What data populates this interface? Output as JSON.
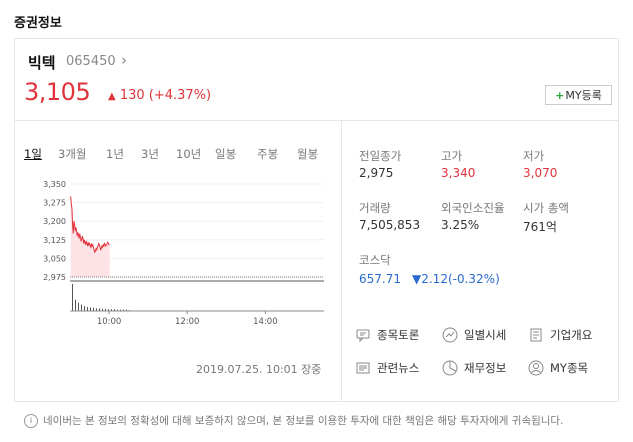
{
  "section_title": "증권정보",
  "stock": {
    "name": "빅텍",
    "code": "065450",
    "price": "3,105",
    "change_arrow": "▲",
    "change": "130 (+4.37%)",
    "my_button": "MY등록"
  },
  "tabs": [
    "1일",
    "3개월",
    "1년",
    "3년",
    "10년",
    "일봉",
    "주봉",
    "월봉"
  ],
  "active_tab": "1일",
  "stats": {
    "prev_close_label": "전일종가",
    "prev_close": "2,975",
    "high_label": "고가",
    "high": "3,340",
    "low_label": "저가",
    "low": "3,070",
    "volume_label": "거래량",
    "volume": "7,505,853",
    "foreign_label": "외국인소진율",
    "foreign": "3.25%",
    "mcap_label": "시가 총액",
    "mcap": "761억"
  },
  "index": {
    "name": "코스닥",
    "value": "657.71",
    "change": "▼2.12(-0.32%)"
  },
  "menu": {
    "discussion": "종목토론",
    "daily": "일별시세",
    "overview": "기업개요",
    "news": "관련뉴스",
    "financials": "재무정보",
    "my_stocks": "MY종목"
  },
  "timestamp": "2019.07.25. 10:01 장중",
  "footer": "네이버는 본 정보의 정확성에 대해 보증하지 않으며, 본 정보를 이용한 투자에 대한 책임은 해당 투자자에게 귀속됩니다.",
  "colors": {
    "up": "#e0333c",
    "down": "#2a6bd1"
  },
  "chart_data": {
    "type": "area",
    "y_tick_labels": [
      "3,350",
      "3,275",
      "3,200",
      "3,125",
      "3,050",
      "2,975"
    ],
    "x_tick_labels": [
      "10:00",
      "12:00",
      "14:00"
    ],
    "ylim": [
      2975,
      3350
    ],
    "x_range_minutes": [
      540,
      930
    ],
    "baseline": 2975,
    "series": [
      {
        "x": [
          541,
          542,
          543,
          544,
          545,
          546,
          547,
          548,
          549,
          550,
          551,
          552,
          553,
          554,
          555,
          556,
          557,
          558,
          559,
          560,
          561,
          562,
          563,
          564,
          565,
          566,
          567,
          568,
          569,
          570,
          571,
          572,
          573,
          574,
          575,
          576,
          577,
          578,
          579,
          580,
          581,
          582,
          583,
          584,
          585,
          586,
          587,
          588,
          589,
          590,
          591,
          592,
          593,
          594,
          595,
          596,
          597,
          598,
          599,
          600,
          601
        ],
        "y": [
          3300,
          3270,
          3250,
          3180,
          3150,
          3200,
          3190,
          3160,
          3175,
          3165,
          3140,
          3155,
          3145,
          3130,
          3150,
          3135,
          3120,
          3125,
          3140,
          3130,
          3110,
          3125,
          3115,
          3105,
          3120,
          3110,
          3100,
          3115,
          3105,
          3110,
          3100,
          3095,
          3110,
          3100,
          3105,
          3095,
          3085,
          3075,
          3080,
          3090,
          3085,
          3095,
          3100,
          3110,
          3105,
          3095,
          3085,
          3090,
          3100,
          3095,
          3105,
          3100,
          3110,
          3105,
          3100,
          3105,
          3110,
          3115,
          3110,
          3105,
          3105
        ]
      }
    ],
    "volume_bars": [
      60,
      25,
      18,
      14,
      11,
      9,
      8,
      7,
      6,
      6,
      5,
      5,
      4,
      4,
      4,
      3,
      3,
      3,
      3,
      2
    ]
  }
}
